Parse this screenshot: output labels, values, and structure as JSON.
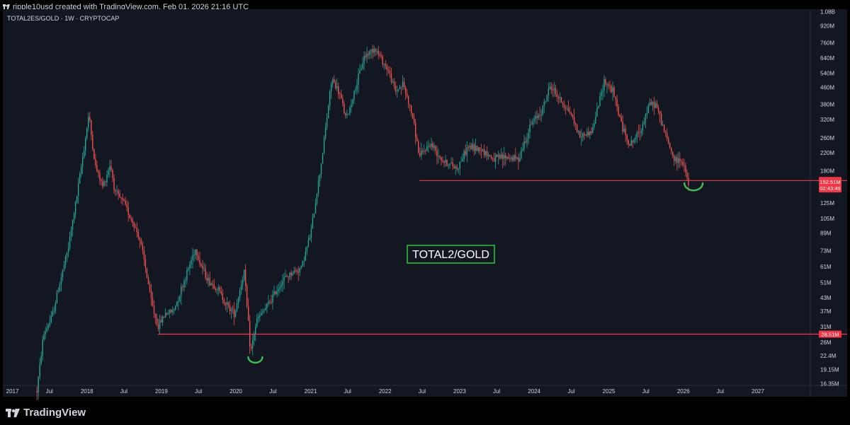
{
  "header": {
    "credit": "ripple10usd created with TradingView.com, Feb 01, 2026 21:16 UTC"
  },
  "brand": {
    "logo_text": "TradingView",
    "logo_icon": "tradingview-logo-icon"
  },
  "chart_data": {
    "type": "candlestick",
    "symbol_line": "TOTAL2ES/GOLD · 1W · CRYPTOCAP",
    "annotation_label": "TOTAL2/GOLD",
    "y_scale": "log",
    "y_ticks": [
      "1.08B",
      "920M",
      "760M",
      "640M",
      "540M",
      "460M",
      "380M",
      "320M",
      "260M",
      "220M",
      "180M",
      "125M",
      "105M",
      "89M",
      "73M",
      "61M",
      "51M",
      "43M",
      "37M",
      "31M",
      "26M",
      "22.4M",
      "19.15M",
      "16.35M"
    ],
    "y_tick_values": [
      1080,
      920,
      760,
      640,
      540,
      460,
      380,
      320,
      260,
      220,
      180,
      125,
      105,
      89,
      73,
      61,
      51,
      43,
      37,
      31,
      26,
      22.4,
      19.15,
      16.35
    ],
    "x_ticks": [
      {
        "label": "2017",
        "date": "2017-01-01"
      },
      {
        "label": "Jul",
        "date": "2017-07-01"
      },
      {
        "label": "2018",
        "date": "2018-01-01"
      },
      {
        "label": "Jul",
        "date": "2018-07-01"
      },
      {
        "label": "2019",
        "date": "2019-01-01"
      },
      {
        "label": "Jul",
        "date": "2019-07-01"
      },
      {
        "label": "2020",
        "date": "2020-01-01"
      },
      {
        "label": "Jul",
        "date": "2020-07-01"
      },
      {
        "label": "2021",
        "date": "2021-01-01"
      },
      {
        "label": "Jul",
        "date": "2021-07-01"
      },
      {
        "label": "2022",
        "date": "2022-01-01"
      },
      {
        "label": "Jul",
        "date": "2022-07-01"
      },
      {
        "label": "2023",
        "date": "2023-01-01"
      },
      {
        "label": "Jul",
        "date": "2023-07-01"
      },
      {
        "label": "2024",
        "date": "2024-01-01"
      },
      {
        "label": "Jul",
        "date": "2024-07-01"
      },
      {
        "label": "2025",
        "date": "2025-01-01"
      },
      {
        "label": "Jul",
        "date": "2025-07-01"
      },
      {
        "label": "2026",
        "date": "2026-01-01"
      },
      {
        "label": "Jul",
        "date": "2026-07-01"
      },
      {
        "label": "2027",
        "date": "2027-01-01"
      }
    ],
    "x_range": [
      "2016-11-15",
      "2027-09-15"
    ],
    "y_range": [
      16,
      1110
    ],
    "series": [
      {
        "values": [
          [
            "2017-05-01",
            15
          ],
          [
            "2017-06-01",
            28
          ],
          [
            "2017-07-15",
            35
          ],
          [
            "2017-08-15",
            48
          ],
          [
            "2017-10-01",
            75
          ],
          [
            "2017-11-15",
            140
          ],
          [
            "2017-12-25",
            260
          ],
          [
            "2018-01-10",
            340
          ],
          [
            "2018-02-10",
            190
          ],
          [
            "2018-03-20",
            150
          ],
          [
            "2018-04-25",
            195
          ],
          [
            "2018-05-20",
            140
          ],
          [
            "2018-07-01",
            125
          ],
          [
            "2018-08-15",
            100
          ],
          [
            "2018-09-15",
            85
          ],
          [
            "2018-10-15",
            60
          ],
          [
            "2018-11-15",
            40
          ],
          [
            "2018-12-15",
            31
          ],
          [
            "2019-01-20",
            36
          ],
          [
            "2019-03-01",
            37
          ],
          [
            "2019-05-01",
            55
          ],
          [
            "2019-06-15",
            75
          ],
          [
            "2019-07-20",
            60
          ],
          [
            "2019-08-20",
            52
          ],
          [
            "2019-10-01",
            48
          ],
          [
            "2019-11-15",
            40
          ],
          [
            "2019-12-25",
            36
          ],
          [
            "2020-02-10",
            58
          ],
          [
            "2020-03-13",
            23
          ],
          [
            "2020-04-10",
            33
          ],
          [
            "2020-06-01",
            39
          ],
          [
            "2020-08-15",
            52
          ],
          [
            "2020-10-01",
            57
          ],
          [
            "2020-11-15",
            60
          ],
          [
            "2021-01-01",
            88
          ],
          [
            "2021-02-20",
            190
          ],
          [
            "2021-04-15",
            510
          ],
          [
            "2021-05-25",
            420
          ],
          [
            "2021-06-25",
            320
          ],
          [
            "2021-08-15",
            480
          ],
          [
            "2021-09-20",
            650
          ],
          [
            "2021-11-10",
            720
          ],
          [
            "2022-01-15",
            560
          ],
          [
            "2022-02-20",
            440
          ],
          [
            "2022-03-30",
            480
          ],
          [
            "2022-05-15",
            330
          ],
          [
            "2022-06-18",
            210
          ],
          [
            "2022-08-10",
            245
          ],
          [
            "2022-10-15",
            200
          ],
          [
            "2022-12-20",
            185
          ],
          [
            "2023-02-10",
            235
          ],
          [
            "2023-04-15",
            230
          ],
          [
            "2023-06-15",
            205
          ],
          [
            "2023-08-15",
            210
          ],
          [
            "2023-10-15",
            205
          ],
          [
            "2023-12-15",
            300
          ],
          [
            "2024-02-10",
            360
          ],
          [
            "2024-03-20",
            470
          ],
          [
            "2024-05-15",
            390
          ],
          [
            "2024-07-01",
            340
          ],
          [
            "2024-08-10",
            265
          ],
          [
            "2024-10-10",
            280
          ],
          [
            "2024-12-10",
            500
          ],
          [
            "2025-01-20",
            440
          ],
          [
            "2025-03-10",
            290
          ],
          [
            "2025-04-15",
            240
          ],
          [
            "2025-06-01",
            280
          ],
          [
            "2025-07-20",
            380
          ],
          [
            "2025-08-20",
            380
          ],
          [
            "2025-10-10",
            260
          ],
          [
            "2025-11-20",
            200
          ],
          [
            "2025-12-20",
            205
          ],
          [
            "2026-02-01",
            152.51
          ]
        ]
      }
    ],
    "horizontal_levels": [
      {
        "value": 160.98,
        "label": "160.98M",
        "start": "2022-06-18",
        "color": "#f23645"
      },
      {
        "value": 28.51,
        "label": "28.51M",
        "start": "2018-12-15",
        "color": "#f23645"
      }
    ],
    "last_price": {
      "value": 152.51,
      "label": "152.51M",
      "countdown": "02:43:49"
    },
    "annotations": [
      {
        "type": "arc",
        "at": "2020-04-05",
        "value": 21,
        "color": "#3fbf54"
      },
      {
        "type": "arc",
        "at": "2026-02-20",
        "value": 147,
        "color": "#3fbf54"
      }
    ],
    "colors": {
      "up": "#26a69a",
      "down": "#ef5350",
      "background": "#131722",
      "axis_text": "#d1d4dc",
      "label_box_border": "#2ac93a"
    }
  }
}
